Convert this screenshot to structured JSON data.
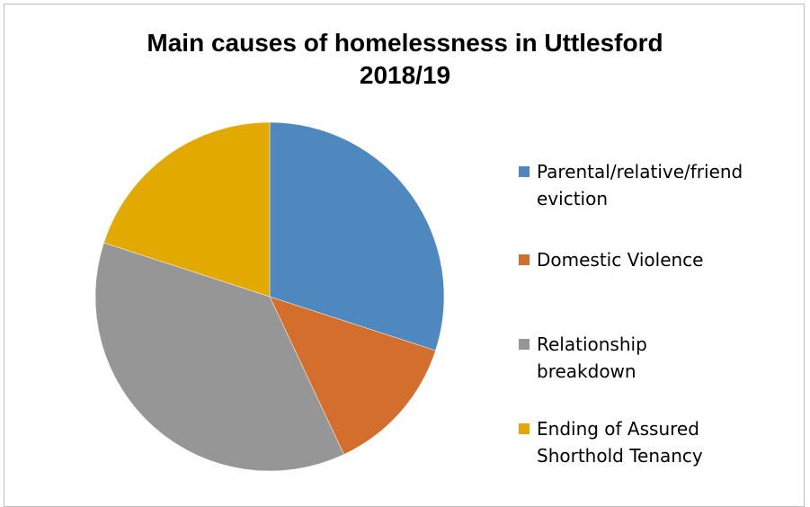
{
  "chart_data": {
    "type": "pie",
    "title": "Main causes of homelessness in Uttlesford 2018/19",
    "title_lines": [
      "Main causes of homelessness in Uttlesford",
      "2018/19"
    ],
    "categories": [
      "Parental/relative/friend eviction",
      "Domestic Violence",
      "Relationship breakdown",
      "Ending of Assured Shorthold Tenancy"
    ],
    "legend_lines": [
      [
        "Parental/relative/friend",
        "eviction"
      ],
      [
        "Domestic Violence"
      ],
      [
        "Relationship",
        "breakdown"
      ],
      [
        "Ending of Assured",
        "Shorthold Tenancy"
      ]
    ],
    "values": [
      30,
      13,
      37,
      20
    ],
    "colors": [
      "#4f88be",
      "#d46e2c",
      "#969696",
      "#e2a900"
    ],
    "start_angle_deg": 0,
    "direction": "clockwise",
    "legend_position": "right"
  }
}
